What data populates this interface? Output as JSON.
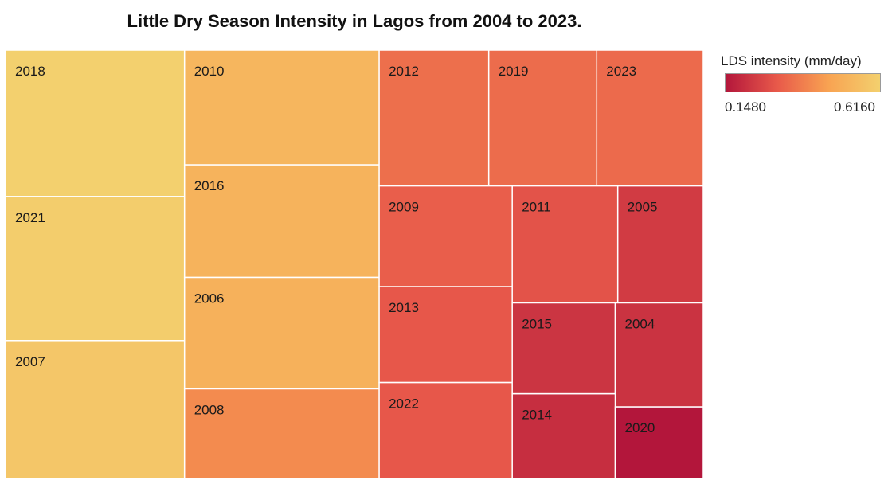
{
  "chart_data": {
    "type": "treemap",
    "title": "Little Dry Season Intensity in Lagos from 2004 to 2023.",
    "color_legend": {
      "title": "LDS intensity (mm/day)",
      "min_label": "0.1480",
      "max_label": "0.6160",
      "min": 0.148,
      "max": 0.616,
      "colors": [
        "#b3163b",
        "#e8594a",
        "#f8a352",
        "#f3d06e"
      ]
    },
    "items": [
      {
        "label": "2018",
        "value": 0.616
      },
      {
        "label": "2021",
        "value": 0.606
      },
      {
        "label": "2007",
        "value": 0.58
      },
      {
        "label": "2010",
        "value": 0.525
      },
      {
        "label": "2016",
        "value": 0.515
      },
      {
        "label": "2006",
        "value": 0.51
      },
      {
        "label": "2008",
        "value": 0.41
      },
      {
        "label": "2012",
        "value": 0.35
      },
      {
        "label": "2019",
        "value": 0.345
      },
      {
        "label": "2023",
        "value": 0.34
      },
      {
        "label": "2009",
        "value": 0.315
      },
      {
        "label": "2013",
        "value": 0.3
      },
      {
        "label": "2022",
        "value": 0.3
      },
      {
        "label": "2011",
        "value": 0.29
      },
      {
        "label": "2005",
        "value": 0.235
      },
      {
        "label": "2015",
        "value": 0.22
      },
      {
        "label": "2004",
        "value": 0.215
      },
      {
        "label": "2014",
        "value": 0.205
      },
      {
        "label": "2020",
        "value": 0.148
      }
    ]
  }
}
